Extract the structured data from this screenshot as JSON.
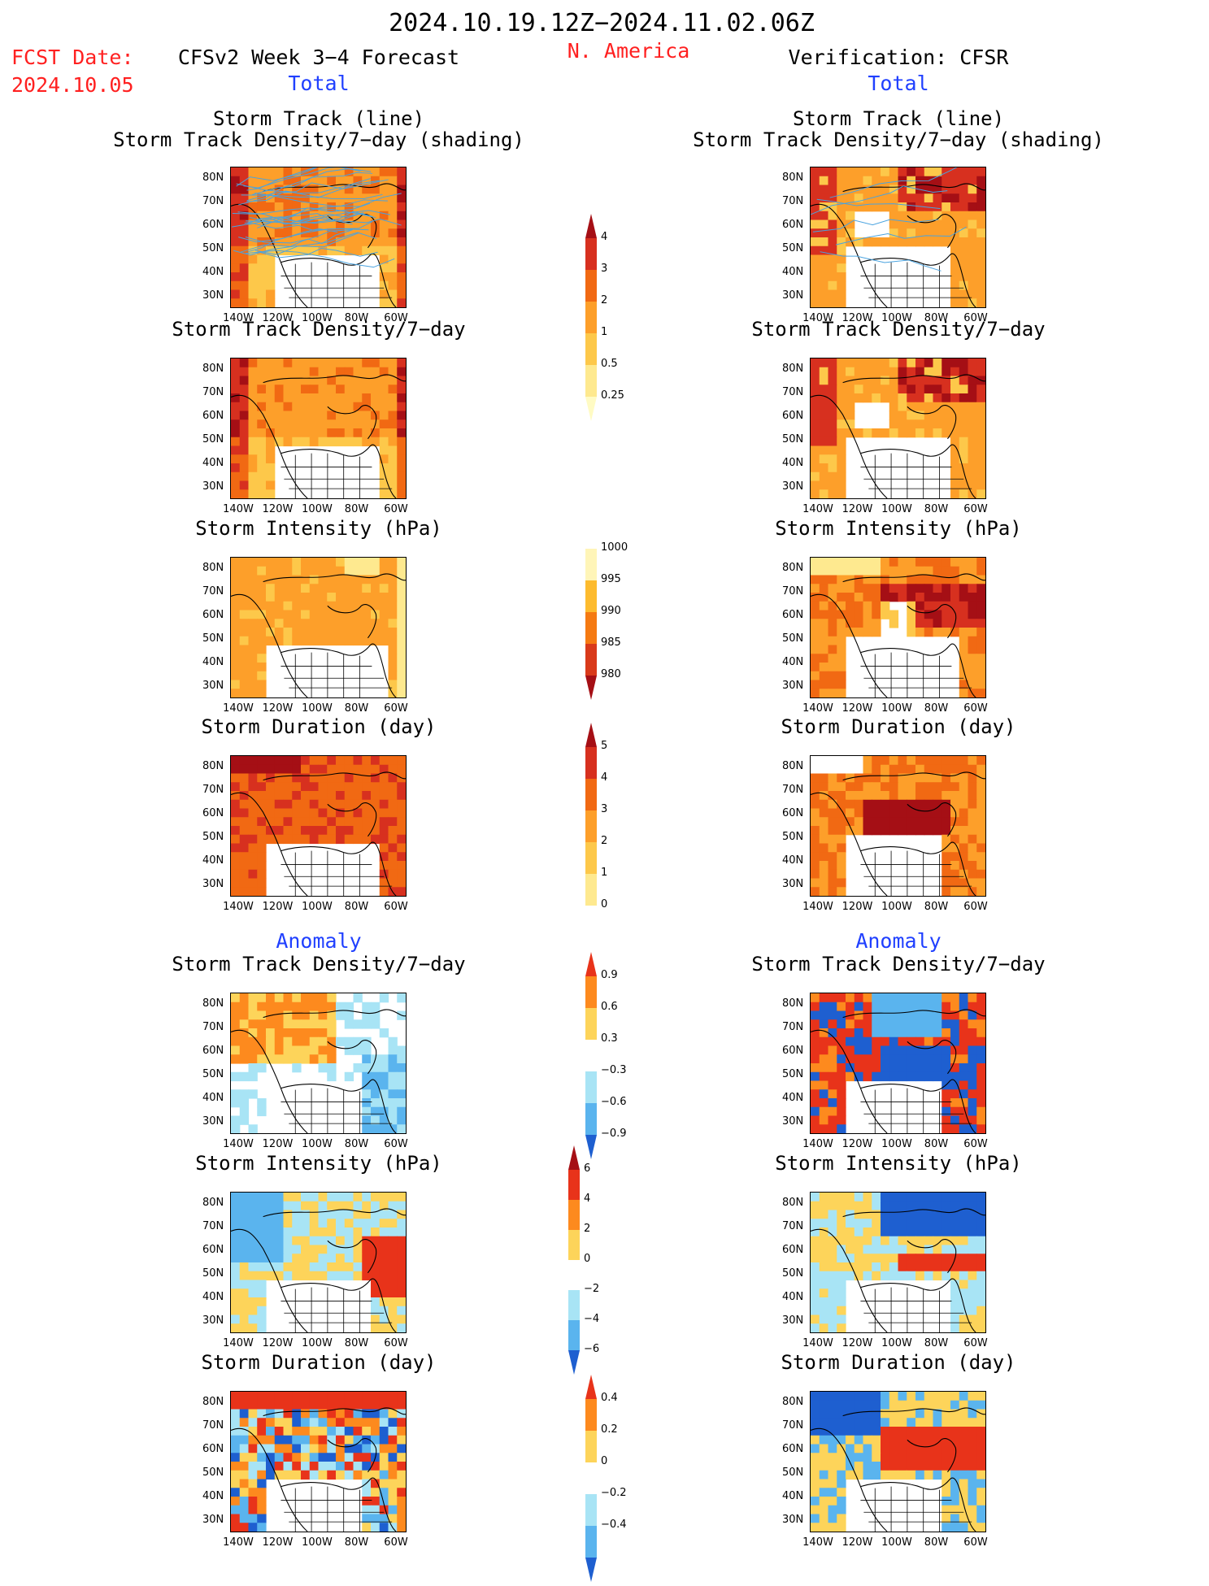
{
  "header": {
    "period": "2024.10.19.12Z−2024.11.02.06Z",
    "fcst_label": "FCST Date:",
    "fcst_date": "2024.10.05",
    "model": "CFSv2 Week 3−4 Forecast",
    "region": "N. America",
    "verification": "Verification: CFSR"
  },
  "sections": {
    "total": "Total",
    "anomaly": "Anomaly"
  },
  "panels": [
    {
      "id": "total-track",
      "title1": "Storm Track (line)",
      "title2": "Storm Track Density/7−day (shading)"
    },
    {
      "id": "total-density",
      "title1": "Storm Track Density/7−day",
      "title2": ""
    },
    {
      "id": "total-intensity",
      "title1": "Storm Intensity (hPa)",
      "title2": ""
    },
    {
      "id": "total-duration",
      "title1": "Storm Duration (day)",
      "title2": ""
    },
    {
      "id": "anom-density",
      "title1": "Storm Track Density/7−day",
      "title2": ""
    },
    {
      "id": "anom-intensity",
      "title1": "Storm Intensity (hPa)",
      "title2": ""
    },
    {
      "id": "anom-duration",
      "title1": "Storm Duration (day)",
      "title2": ""
    }
  ],
  "axes": {
    "lat_labels": [
      "80N",
      "70N",
      "60N",
      "50N",
      "40N",
      "30N"
    ],
    "lon_labels": [
      "140W",
      "120W",
      "100W",
      "80W",
      "60W"
    ]
  },
  "colorbars": [
    {
      "id": "density-total",
      "labels": [
        "4",
        "3",
        "2",
        "1",
        "0.5",
        "0.25"
      ],
      "colors": [
        "#a50f15",
        "#d7301f",
        "#f16913",
        "#fd9f2a",
        "#fdc84a",
        "#fee98f",
        "#fffbc4"
      ]
    },
    {
      "id": "intensity-total",
      "labels": [
        "1000",
        "995",
        "990",
        "985",
        "980"
      ],
      "colors": [
        "#ffffff",
        "#fff5b8",
        "#fdbb2e",
        "#f57a12",
        "#d93a1a",
        "#a50f15"
      ]
    },
    {
      "id": "duration-total",
      "labels": [
        "5",
        "4",
        "3",
        "2",
        "1",
        "0"
      ],
      "colors": [
        "#a50f15",
        "#d7301f",
        "#f16913",
        "#fd9f2a",
        "#fdc84a",
        "#fee98f",
        "#ffffff"
      ]
    },
    {
      "id": "density-anom",
      "labels": [
        "0.9",
        "0.6",
        "0.3",
        "−0.3",
        "−0.6",
        "−0.9"
      ],
      "colors": [
        "#e8331a",
        "#fd8a1e",
        "#fdd45a",
        "#ffffff",
        "#a8e4f5",
        "#5ab4ee",
        "#1e5fd0"
      ]
    },
    {
      "id": "intensity-anom",
      "labels": [
        "6",
        "4",
        "2",
        "0",
        "−2",
        "−4",
        "−6"
      ],
      "colors": [
        "#a50f15",
        "#e8331a",
        "#fd8a1e",
        "#fdd45a",
        "#ffffff",
        "#a8e4f5",
        "#5ab4ee",
        "#1e5fd0"
      ]
    },
    {
      "id": "duration-anom",
      "labels": [
        "0.4",
        "0.2",
        "0",
        "−0.2",
        "−0.4"
      ],
      "colors": [
        "#e8331a",
        "#fd8a1e",
        "#fdd45a",
        "#ffffff",
        "#a8e4f5",
        "#5ab4ee",
        "#1e5fd0"
      ]
    }
  ]
}
